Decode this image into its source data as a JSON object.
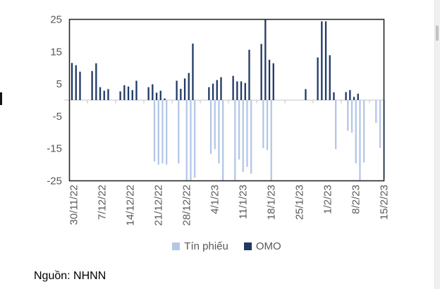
{
  "source": {
    "text": "Nguồn: NHNN"
  },
  "colors": {
    "background": "#ffffff",
    "axis_text": "#595959",
    "frame": "#262626",
    "zero_line": "#d9d9d9",
    "week_tick": "#bfbfbf",
    "tin_phieu": "#b4c7e7",
    "omo": "#1f3864",
    "scrollbar_track": "#f0f0f0",
    "scrollbar_thumb": "#c2c2c2"
  },
  "chart_data": {
    "type": "bar",
    "title": "",
    "xlabel": "",
    "ylabel": "",
    "ylim": [
      -25,
      25
    ],
    "y_axis_ticks": [
      25,
      15,
      5,
      -5,
      -15,
      -25
    ],
    "grid": false,
    "legend_position": "bottom",
    "x_tick_labels": [
      "30/11/22",
      "7/12/22",
      "14/12/22",
      "21/12/22",
      "28/12/22",
      "4/1/23",
      "11/1/23",
      "18/1/23",
      "25/1/23",
      "1/2/23",
      "8/2/23",
      "15/2/23"
    ],
    "series": [
      {
        "name": "Tín phiếu",
        "color": "#b4c7e7"
      },
      {
        "name": "OMO",
        "color": "#1f3864"
      }
    ],
    "points": [
      {
        "date": "30/11/22",
        "omo": 11.5,
        "tp": 0
      },
      {
        "date": "1/12/22",
        "omo": 10.8,
        "tp": 0
      },
      {
        "date": "2/12/22",
        "omo": 8.8,
        "tp": 0
      },
      {
        "date": "5/12/22",
        "omo": 9.0,
        "tp": 0
      },
      {
        "date": "6/12/22",
        "omo": 11.4,
        "tp": 0
      },
      {
        "date": "7/12/22",
        "omo": 4.0,
        "tp": 0
      },
      {
        "date": "8/12/22",
        "omo": 2.9,
        "tp": 0
      },
      {
        "date": "9/12/22",
        "omo": 3.4,
        "tp": 0
      },
      {
        "date": "12/12/22",
        "omo": 2.7,
        "tp": 0
      },
      {
        "date": "13/12/22",
        "omo": 4.6,
        "tp": 0
      },
      {
        "date": "14/12/22",
        "omo": 4.2,
        "tp": 0
      },
      {
        "date": "15/12/22",
        "omo": 3.1,
        "tp": 0
      },
      {
        "date": "16/12/22",
        "omo": 6.0,
        "tp": 0
      },
      {
        "date": "19/12/22",
        "omo": 4.0,
        "tp": 0
      },
      {
        "date": "20/12/22",
        "omo": 4.9,
        "tp": -19.0
      },
      {
        "date": "21/12/22",
        "omo": 2.3,
        "tp": -20.0
      },
      {
        "date": "22/12/22",
        "omo": 2.9,
        "tp": -19.6
      },
      {
        "date": "23/12/22",
        "omo": 0.5,
        "tp": -20.0
      },
      {
        "date": "26/12/22",
        "omo": 6.0,
        "tp": -19.6
      },
      {
        "date": "27/12/22",
        "omo": 3.5,
        "tp": 0
      },
      {
        "date": "28/12/22",
        "omo": 6.7,
        "tp": -25.0
      },
      {
        "date": "29/12/22",
        "omo": 8.4,
        "tp": -25.0
      },
      {
        "date": "30/12/22",
        "omo": 17.5,
        "tp": -24.0
      },
      {
        "date": "3/1/23",
        "omo": 4.0,
        "tp": -16.7
      },
      {
        "date": "4/1/23",
        "omo": 5.1,
        "tp": -15.2
      },
      {
        "date": "5/1/23",
        "omo": 6.2,
        "tp": -19.6
      },
      {
        "date": "6/1/23",
        "omo": 7.1,
        "tp": -25.0
      },
      {
        "date": "9/1/23",
        "omo": 7.5,
        "tp": -25.0
      },
      {
        "date": "10/1/23",
        "omo": 5.8,
        "tp": -18.4
      },
      {
        "date": "11/1/23",
        "omo": 5.8,
        "tp": -22.2
      },
      {
        "date": "12/1/23",
        "omo": 5.3,
        "tp": -20.7
      },
      {
        "date": "13/1/23",
        "omo": 15.6,
        "tp": -22.8
      },
      {
        "date": "16/1/23",
        "omo": 17.4,
        "tp": -14.9
      },
      {
        "date": "17/1/23",
        "omo": 25.0,
        "tp": -15.5
      },
      {
        "date": "18/1/23",
        "omo": 12.5,
        "tp": -25.0
      },
      {
        "date": "19/1/23",
        "omo": 11.4,
        "tp": 0
      },
      {
        "date": "27/1/23",
        "omo": 3.4,
        "tp": 0
      },
      {
        "date": "30/1/23",
        "omo": 13.2,
        "tp": 0
      },
      {
        "date": "31/1/23",
        "omo": 24.4,
        "tp": 0
      },
      {
        "date": "1/2/23",
        "omo": 24.4,
        "tp": 0
      },
      {
        "date": "2/2/23",
        "omo": 13.9,
        "tp": 0
      },
      {
        "date": "3/2/23",
        "omo": 2.4,
        "tp": -15.2
      },
      {
        "date": "6/2/23",
        "omo": 2.5,
        "tp": -9.5
      },
      {
        "date": "7/2/23",
        "omo": 3.1,
        "tp": -10.1
      },
      {
        "date": "8/2/23",
        "omo": 1.0,
        "tp": -19.6
      },
      {
        "date": "9/2/23",
        "omo": 2.0,
        "tp": -25.0
      },
      {
        "date": "10/2/23",
        "omo": 0,
        "tp": -19.3
      },
      {
        "date": "13/2/23",
        "omo": 0,
        "tp": -7.1
      },
      {
        "date": "14/2/23",
        "omo": 0,
        "tp": -14.8
      },
      {
        "date": "15/2/23",
        "omo": 0,
        "tp": -24.3
      }
    ]
  }
}
